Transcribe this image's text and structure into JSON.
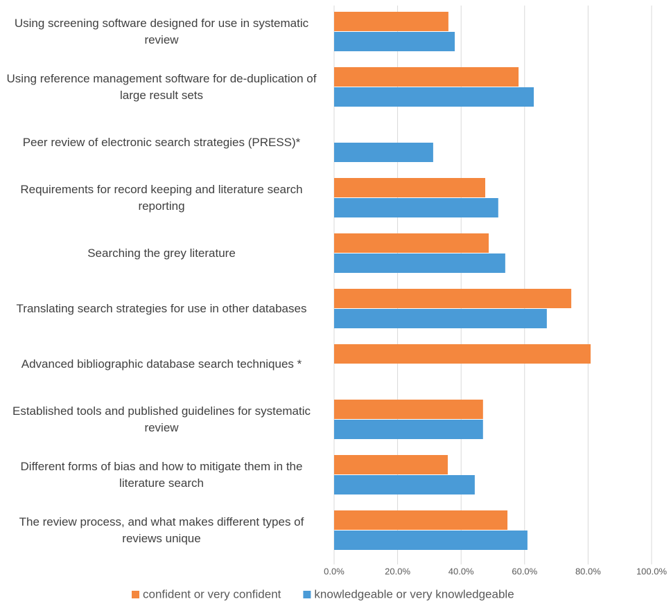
{
  "chart_data": {
    "type": "bar",
    "orientation": "horizontal",
    "categories": [
      "Using screening software designed for use in systematic review",
      "Using reference management software for de-duplication of large result sets",
      "Peer review of electronic search strategies (PRESS)*",
      "Requirements for record keeping and literature search reporting",
      "Searching the grey literature",
      "Translating search strategies for use in other databases",
      "Advanced bibliographic database search techniques *",
      "Established tools and published guidelines for systematic review",
      "Different forms of bias and how to mitigate them in the literature search",
      "The review process, and what makes different types of reviews unique"
    ],
    "series": [
      {
        "name": "confident or very confident",
        "color": "#f4873e",
        "values": [
          36.0,
          58.1,
          null,
          47.6,
          48.7,
          74.7,
          80.8,
          46.9,
          35.8,
          54.6
        ]
      },
      {
        "name": "knowledgeable or very knowledgeable",
        "color": "#4a9bd7",
        "values": [
          38.0,
          62.9,
          31.2,
          51.7,
          53.9,
          67.0,
          null,
          46.9,
          44.3,
          60.9
        ]
      }
    ],
    "xlim": [
      0,
      100
    ],
    "xticks": [
      {
        "value": 0,
        "label": "0.0%"
      },
      {
        "value": 20,
        "label": "20.0%"
      },
      {
        "value": 40,
        "label": "40.0%"
      },
      {
        "value": 60,
        "label": "60.0%"
      },
      {
        "value": 80,
        "label": "80.0%"
      },
      {
        "value": 100,
        "label": "100.0%"
      }
    ],
    "grid": true,
    "legend": "bottom"
  }
}
